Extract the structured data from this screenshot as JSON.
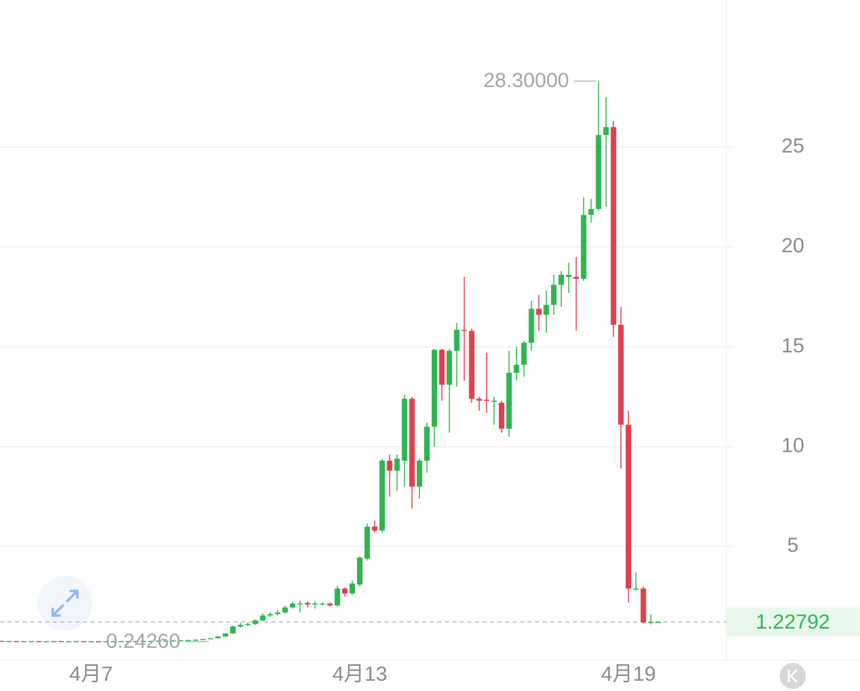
{
  "chart_data": {
    "type": "candlestick",
    "categories": [
      null,
      null,
      null,
      null,
      null,
      null,
      null,
      null,
      null,
      null,
      null,
      null,
      "4月7",
      null,
      null,
      null,
      null,
      null,
      null,
      null,
      null,
      null,
      null,
      null,
      null,
      null,
      null,
      null,
      null,
      null,
      null,
      null,
      null,
      null,
      null,
      null,
      null,
      null,
      null,
      null,
      null,
      null,
      null,
      null,
      null,
      null,
      null,
      null,
      "4月13",
      null,
      null,
      null,
      null,
      null,
      null,
      null,
      null,
      null,
      null,
      null,
      null,
      null,
      null,
      null,
      null,
      null,
      null,
      null,
      null,
      null,
      null,
      null,
      null,
      null,
      null,
      null,
      null,
      null,
      null,
      null,
      null,
      null,
      null,
      null,
      "4月19",
      null,
      null,
      null,
      null
    ],
    "open": [
      0.28,
      0.27,
      0.27,
      0.26,
      0.27,
      0.27,
      0.26,
      0.26,
      0.27,
      0.26,
      0.26,
      0.27,
      0.26,
      0.26,
      0.25,
      0.26,
      0.26,
      0.27,
      0.27,
      0.27,
      0.28,
      0.28,
      0.29,
      0.29,
      0.3,
      0.31,
      0.32,
      0.34,
      0.37,
      0.41,
      0.5,
      0.65,
      1.0,
      1.08,
      1.12,
      1.3,
      1.55,
      1.62,
      1.7,
      1.95,
      2.1,
      2.18,
      2.1,
      2.12,
      2.15,
      2.05,
      2.9,
      2.65,
      3.1,
      4.4,
      6.0,
      5.8,
      9.3,
      8.8,
      9.3,
      12.4,
      8.0,
      9.3,
      11.0,
      14.85,
      13.1,
      14.8,
      15.85,
      15.8,
      12.4,
      12.35,
      12.3,
      12.2,
      10.9,
      13.7,
      14.1,
      15.2,
      16.9,
      16.6,
      17.1,
      18.1,
      18.5,
      18.5,
      18.4,
      21.6,
      21.9,
      25.6,
      26.0,
      16.1,
      11.1,
      2.85,
      2.9,
      1.2,
      1.22
    ],
    "high": [
      0.29,
      0.28,
      0.28,
      0.28,
      0.28,
      0.28,
      0.27,
      0.28,
      0.28,
      0.27,
      0.28,
      0.27,
      0.27,
      0.27,
      0.27,
      0.27,
      0.28,
      0.28,
      0.28,
      0.29,
      0.29,
      0.3,
      0.3,
      0.31,
      0.32,
      0.33,
      0.35,
      0.38,
      0.42,
      0.52,
      0.68,
      1.05,
      1.18,
      1.2,
      1.35,
      1.65,
      1.7,
      1.8,
      2.05,
      2.25,
      2.3,
      2.25,
      2.25,
      2.2,
      2.2,
      3.05,
      2.95,
      3.3,
      4.5,
      6.15,
      6.3,
      9.4,
      9.6,
      9.6,
      12.6,
      12.5,
      9.4,
      11.2,
      14.9,
      14.9,
      14.9,
      16.2,
      18.5,
      15.9,
      12.5,
      14.7,
      12.5,
      12.3,
      14.8,
      15.0,
      15.3,
      17.3,
      17.6,
      17.8,
      18.6,
      18.8,
      19.2,
      19.5,
      22.5,
      22.4,
      28.3,
      27.5,
      26.3,
      17.0,
      11.8,
      3.7,
      3.0,
      1.6,
      1.26
    ],
    "low": [
      0.26,
      0.26,
      0.25,
      0.25,
      0.26,
      0.25,
      0.25,
      0.25,
      0.25,
      0.25,
      0.25,
      0.25,
      0.25,
      0.25,
      0.2426,
      0.25,
      0.25,
      0.26,
      0.26,
      0.26,
      0.27,
      0.27,
      0.28,
      0.28,
      0.29,
      0.3,
      0.31,
      0.33,
      0.36,
      0.4,
      0.48,
      0.63,
      0.95,
      1.02,
      1.08,
      1.25,
      1.48,
      1.55,
      1.65,
      1.9,
      1.7,
      1.95,
      1.9,
      2.05,
      2.0,
      2.0,
      2.5,
      2.6,
      3.0,
      4.3,
      5.7,
      5.7,
      7.5,
      7.8,
      8.0,
      6.9,
      7.4,
      8.7,
      10.0,
      12.3,
      10.7,
      13.0,
      13.3,
      12.2,
      11.8,
      11.7,
      11.1,
      10.7,
      10.5,
      13.3,
      13.5,
      14.8,
      15.8,
      15.7,
      16.6,
      17.0,
      17.7,
      15.8,
      18.3,
      21.2,
      21.8,
      22.0,
      15.5,
      8.9,
      2.2,
      2.8,
      1.15,
      1.1,
      1.2
    ],
    "close": [
      0.27,
      0.27,
      0.26,
      0.27,
      0.27,
      0.26,
      0.26,
      0.27,
      0.26,
      0.26,
      0.27,
      0.26,
      0.26,
      0.25,
      0.26,
      0.26,
      0.27,
      0.27,
      0.27,
      0.28,
      0.28,
      0.29,
      0.29,
      0.3,
      0.31,
      0.32,
      0.34,
      0.37,
      0.41,
      0.5,
      0.65,
      1.0,
      1.08,
      1.12,
      1.3,
      1.55,
      1.62,
      1.7,
      1.95,
      2.15,
      2.15,
      2.1,
      2.15,
      2.14,
      2.05,
      2.9,
      2.65,
      3.15,
      4.45,
      6.0,
      5.8,
      9.3,
      8.8,
      9.4,
      12.4,
      8.0,
      9.3,
      11.0,
      14.85,
      13.1,
      14.8,
      15.85,
      15.8,
      12.4,
      12.3,
      12.3,
      12.3,
      10.9,
      13.7,
      14.1,
      15.2,
      16.9,
      16.6,
      17.1,
      18.1,
      18.6,
      18.6,
      18.4,
      21.6,
      21.9,
      25.6,
      26.0,
      16.1,
      11.1,
      2.9,
      2.9,
      1.2,
      1.23,
      1.22792
    ],
    "up_color": "#2fb550",
    "down_color": "#e0404f",
    "ylim": [
      -0.686,
      32.36
    ],
    "yticks": [
      5,
      10,
      15,
      20,
      25
    ],
    "grid": true,
    "max_marker": {
      "value": 28.3,
      "label": "28.30000"
    },
    "min_marker": {
      "value": 0.2426,
      "label": "0.24260"
    },
    "last_price": {
      "value": 1.22792,
      "label": "1.22792"
    }
  }
}
